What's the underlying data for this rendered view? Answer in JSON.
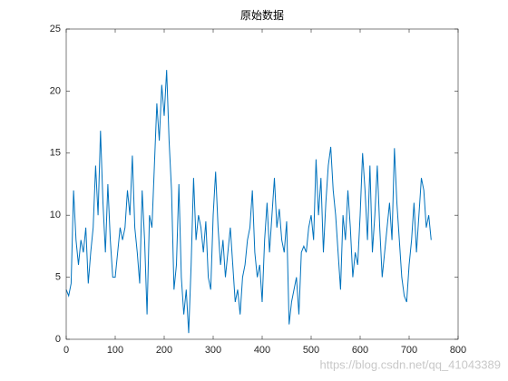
{
  "chart_data": {
    "type": "line",
    "title": "原始数据",
    "x": [
      0,
      5,
      10,
      15,
      20,
      25,
      30,
      35,
      40,
      45,
      50,
      55,
      60,
      65,
      70,
      75,
      80,
      85,
      90,
      95,
      100,
      105,
      110,
      115,
      120,
      125,
      130,
      135,
      140,
      145,
      150,
      155,
      160,
      165,
      170,
      175,
      180,
      185,
      190,
      195,
      200,
      205,
      210,
      215,
      220,
      225,
      230,
      235,
      240,
      245,
      250,
      255,
      260,
      265,
      270,
      275,
      280,
      285,
      290,
      295,
      300,
      305,
      310,
      315,
      320,
      325,
      330,
      335,
      340,
      345,
      350,
      355,
      360,
      365,
      370,
      375,
      380,
      385,
      390,
      395,
      400,
      405,
      410,
      415,
      420,
      425,
      430,
      435,
      440,
      445,
      450,
      455,
      460,
      465,
      470,
      475,
      480,
      485,
      490,
      495,
      500,
      505,
      510,
      515,
      520,
      525,
      530,
      535,
      540,
      545,
      550,
      555,
      560,
      565,
      570,
      575,
      580,
      585,
      590,
      595,
      600,
      605,
      610,
      615,
      620,
      625,
      630,
      635,
      640,
      645,
      650,
      655,
      660,
      665,
      670,
      675,
      680,
      685,
      690,
      695,
      700,
      705,
      710,
      715,
      720,
      725,
      730,
      735,
      740,
      745
    ],
    "series": [
      {
        "color": "#0072bd",
        "values": [
          4,
          3.5,
          4.5,
          12,
          8,
          6,
          8,
          7,
          9,
          4.5,
          7,
          9,
          14,
          10,
          16.8,
          11,
          7,
          12.5,
          8,
          5,
          5,
          7,
          9,
          8,
          9,
          12,
          10,
          14.8,
          9,
          7,
          4.5,
          12,
          8,
          2,
          10,
          9,
          14,
          19,
          16,
          20.5,
          18,
          21.7,
          16,
          12,
          4,
          6,
          12.5,
          5,
          2,
          4,
          0.5,
          6,
          13,
          8,
          10,
          9,
          7,
          9.5,
          5,
          4,
          10,
          13.5,
          9,
          6,
          8,
          5,
          7,
          9,
          6,
          3,
          4,
          2,
          5,
          6,
          8,
          9,
          12,
          7,
          5,
          6,
          3,
          8,
          11,
          7,
          10,
          13,
          9,
          10.5,
          8,
          7,
          9.5,
          1.2,
          3,
          4,
          5,
          2,
          7,
          7.5,
          7,
          9,
          10,
          8,
          14.5,
          10,
          13,
          7,
          11,
          14,
          15.5,
          12,
          10,
          7,
          4,
          10,
          8,
          12,
          9,
          5,
          7,
          6,
          10,
          15,
          12,
          8,
          14,
          7,
          10,
          14,
          9,
          5,
          7,
          9,
          11,
          8,
          15.4,
          11,
          8,
          5,
          3.5,
          3,
          6,
          8,
          11,
          7,
          10,
          13,
          12,
          9,
          10,
          8
        ]
      }
    ],
    "xlim": [
      0,
      800
    ],
    "xticks": [
      0,
      100,
      200,
      300,
      400,
      500,
      600,
      700,
      800
    ],
    "ylim": [
      0,
      25
    ],
    "yticks": [
      0,
      5,
      10,
      15,
      20,
      25
    ],
    "watermark": "https://blog.csdn.net/qq_41043389"
  }
}
